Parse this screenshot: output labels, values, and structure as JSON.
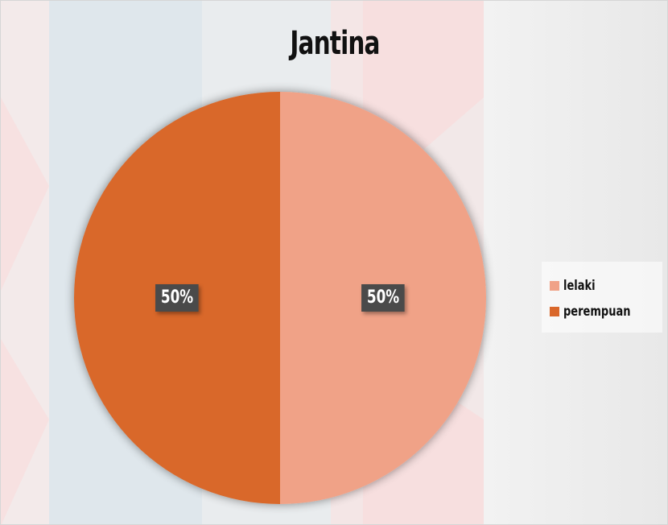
{
  "chart_data": {
    "type": "pie",
    "title": "Jantina",
    "categories": [
      "lelaki",
      "perempuan"
    ],
    "values": [
      50,
      50
    ],
    "value_labels": [
      "50%",
      "50%"
    ],
    "colors": [
      "#f0a287",
      "#d9672a"
    ],
    "legend_position": "right",
    "grid": false
  }
}
